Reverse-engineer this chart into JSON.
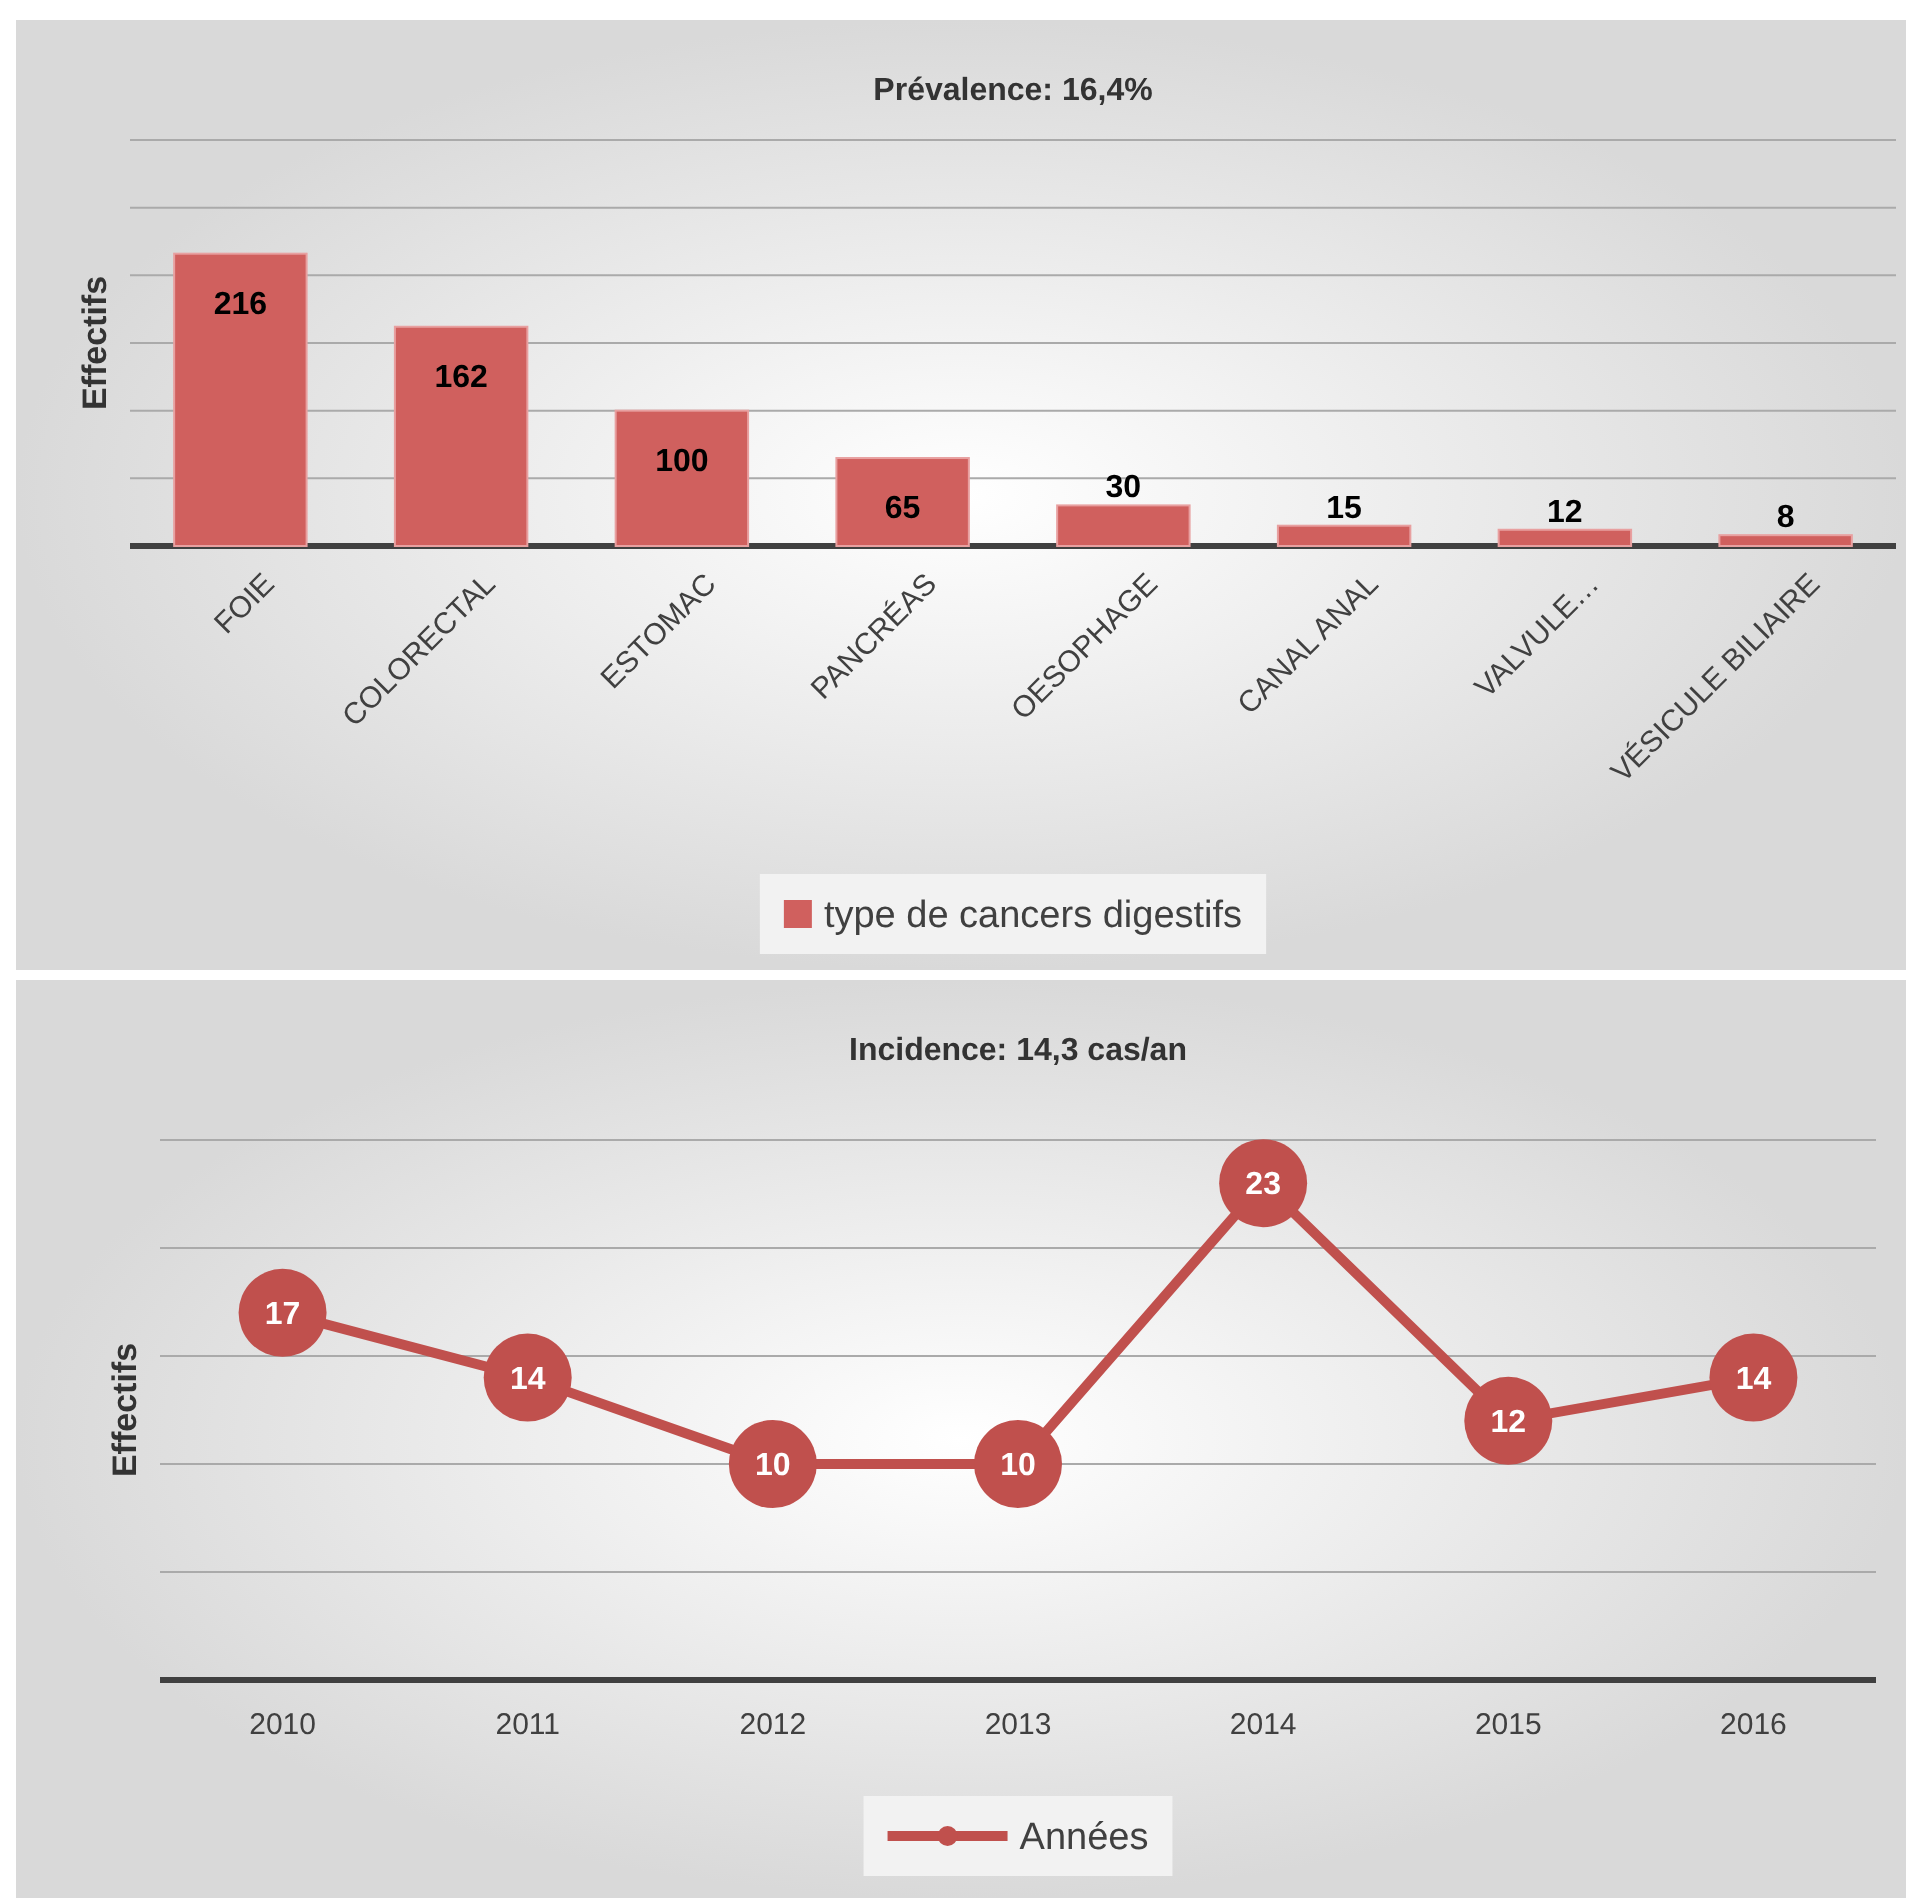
{
  "chart_data": [
    {
      "type": "bar",
      "title": "Prévalence: 16,4%",
      "ylabel": "Effectifs",
      "categories": [
        "FOIE",
        "COLORECTAL",
        "ESTOMAC",
        "PANCRÉAS",
        "OESOPHAGE",
        "CANAL ANAL",
        "VALVULE…",
        "VÉSICULE BILIAIRE"
      ],
      "series": [
        {
          "name": "type de cancers digestifs",
          "color": "#d0605e",
          "values": [
            216,
            162,
            100,
            65,
            30,
            15,
            12,
            8
          ]
        }
      ],
      "ylim": [
        0,
        300
      ],
      "yticks": [
        {
          "value": 0,
          "label": null
        },
        {
          "value": 50,
          "label": null
        },
        {
          "value": 100,
          "label": null
        },
        {
          "value": 150,
          "label": null
        },
        {
          "value": 200,
          "label": null
        },
        {
          "value": 250,
          "label": null
        },
        {
          "value": 300,
          "label": null
        }
      ],
      "tick_labels": "x",
      "grid": "y",
      "data_labels": true,
      "legend": "bottom"
    },
    {
      "type": "line",
      "title": "Incidence: 14,3 cas/an",
      "ylabel": "Effectifs",
      "categories": [
        "2010",
        "2011",
        "2012",
        "2013",
        "2014",
        "2015",
        "2016"
      ],
      "series": [
        {
          "name": "Années",
          "color": "#c0504d",
          "values": [
            17,
            14,
            10,
            10,
            23,
            12,
            14
          ]
        }
      ],
      "ylim": [
        0,
        25
      ],
      "yticks": [
        {
          "value": 0,
          "label": null
        },
        {
          "value": 5,
          "label": null
        },
        {
          "value": 10,
          "label": null
        },
        {
          "value": 15,
          "label": null
        },
        {
          "value": 20,
          "label": null
        },
        {
          "value": 25,
          "label": null
        }
      ],
      "tick_labels": "x",
      "grid": "y",
      "data_labels": true,
      "marker": "circle",
      "line_style": "solid",
      "legend": "bottom"
    }
  ]
}
